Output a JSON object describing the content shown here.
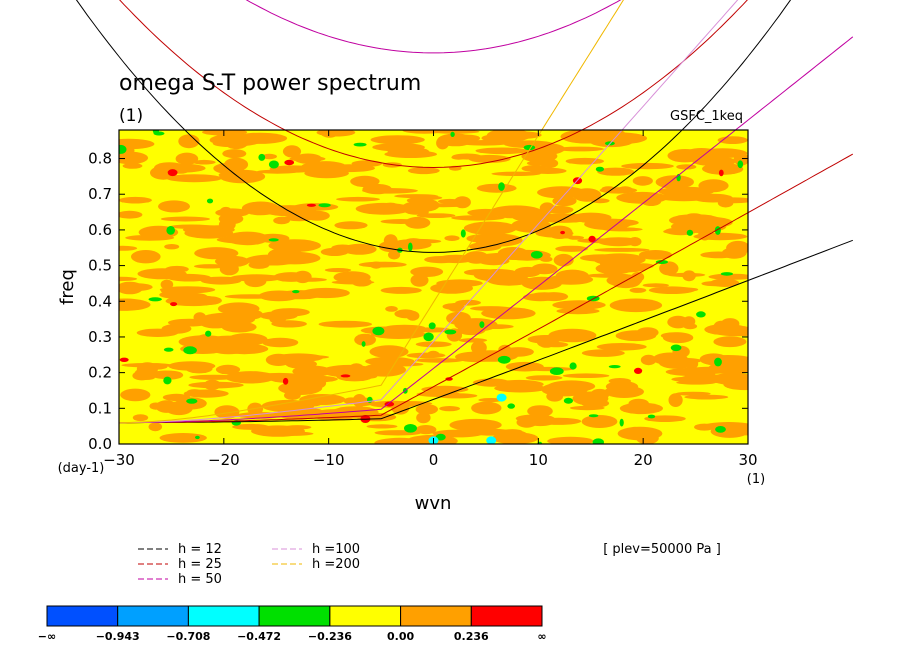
{
  "chart_data": {
    "type": "heatmap",
    "title": "omega S-T power spectrum",
    "subtitle": "(1)",
    "dataset_label": "GSFC_1keq",
    "xlabel": "wvn",
    "x_unit": "(1)",
    "ylabel": "freq",
    "y_unit": "(day-1)",
    "xlim": [
      -30,
      30
    ],
    "ylim": [
      0,
      0.88
    ],
    "x_ticks": [
      -30,
      -20,
      -10,
      0,
      10,
      20,
      30
    ],
    "x_tick_labels": [
      "−30",
      "−20",
      "−10",
      "0",
      "10",
      "20",
      "30"
    ],
    "y_ticks": [
      0,
      0.1,
      0.2,
      0.3,
      0.4,
      0.5,
      0.6,
      0.7,
      0.8
    ],
    "y_tick_labels": [
      "0.0",
      "0.1",
      "0.2",
      "0.3",
      "0.4",
      "0.5",
      "0.6",
      "0.7",
      "0.8"
    ],
    "annotation": "[ plev=50000 Pa ]",
    "dispersion_curves": [
      {
        "name": "h = 12",
        "color": "#000000",
        "h": 12
      },
      {
        "name": "h = 25",
        "color": "#c00000",
        "h": 25
      },
      {
        "name": "h = 50",
        "color": "#c000a0",
        "h": 50
      },
      {
        "name": "h =100",
        "color": "#d890d8",
        "h": 100
      },
      {
        "name": "h =200",
        "color": "#f0b800",
        "h": 200
      }
    ],
    "colorbar": {
      "labels": [
        "−∞",
        "−0.943",
        "−0.708",
        "−0.472",
        "−0.236",
        "0.00",
        "0.236",
        "∞"
      ],
      "colors": [
        "#0050ff",
        "#00a0ff",
        "#00ffff",
        "#00e000",
        "#ffff00",
        "#ffa000",
        "#ff0000"
      ]
    },
    "field_colors": {
      "background": "#ffff00",
      "patch": "#ffa000",
      "low": "#00e000",
      "lower": "#00ffff",
      "high": "#ff0000"
    }
  }
}
